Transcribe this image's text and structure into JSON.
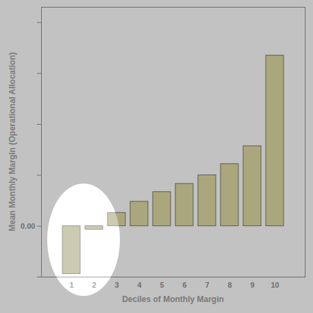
{
  "chart_data": {
    "type": "bar",
    "xlabel": "Deciles of Monthly Margin",
    "ylabel": "Mean Monthly Margin (Operational Allocation)",
    "categories": [
      "1",
      "2",
      "3",
      "4",
      "5",
      "6",
      "7",
      "8",
      "9",
      "10"
    ],
    "values": [
      -0.94,
      -0.07,
      0.26,
      0.48,
      0.67,
      0.83,
      1.0,
      1.22,
      1.57,
      3.35
    ],
    "color": "#aaa77c",
    "ylim": [
      -1,
      4.3
    ],
    "yticks": [
      {
        "value": -1,
        "label": null
      },
      {
        "value": 0,
        "label": "0.00"
      },
      {
        "value": 1,
        "label": null
      },
      {
        "value": 2,
        "label": null
      },
      {
        "value": 3,
        "label": null
      },
      {
        "value": 4,
        "label": null
      }
    ]
  }
}
